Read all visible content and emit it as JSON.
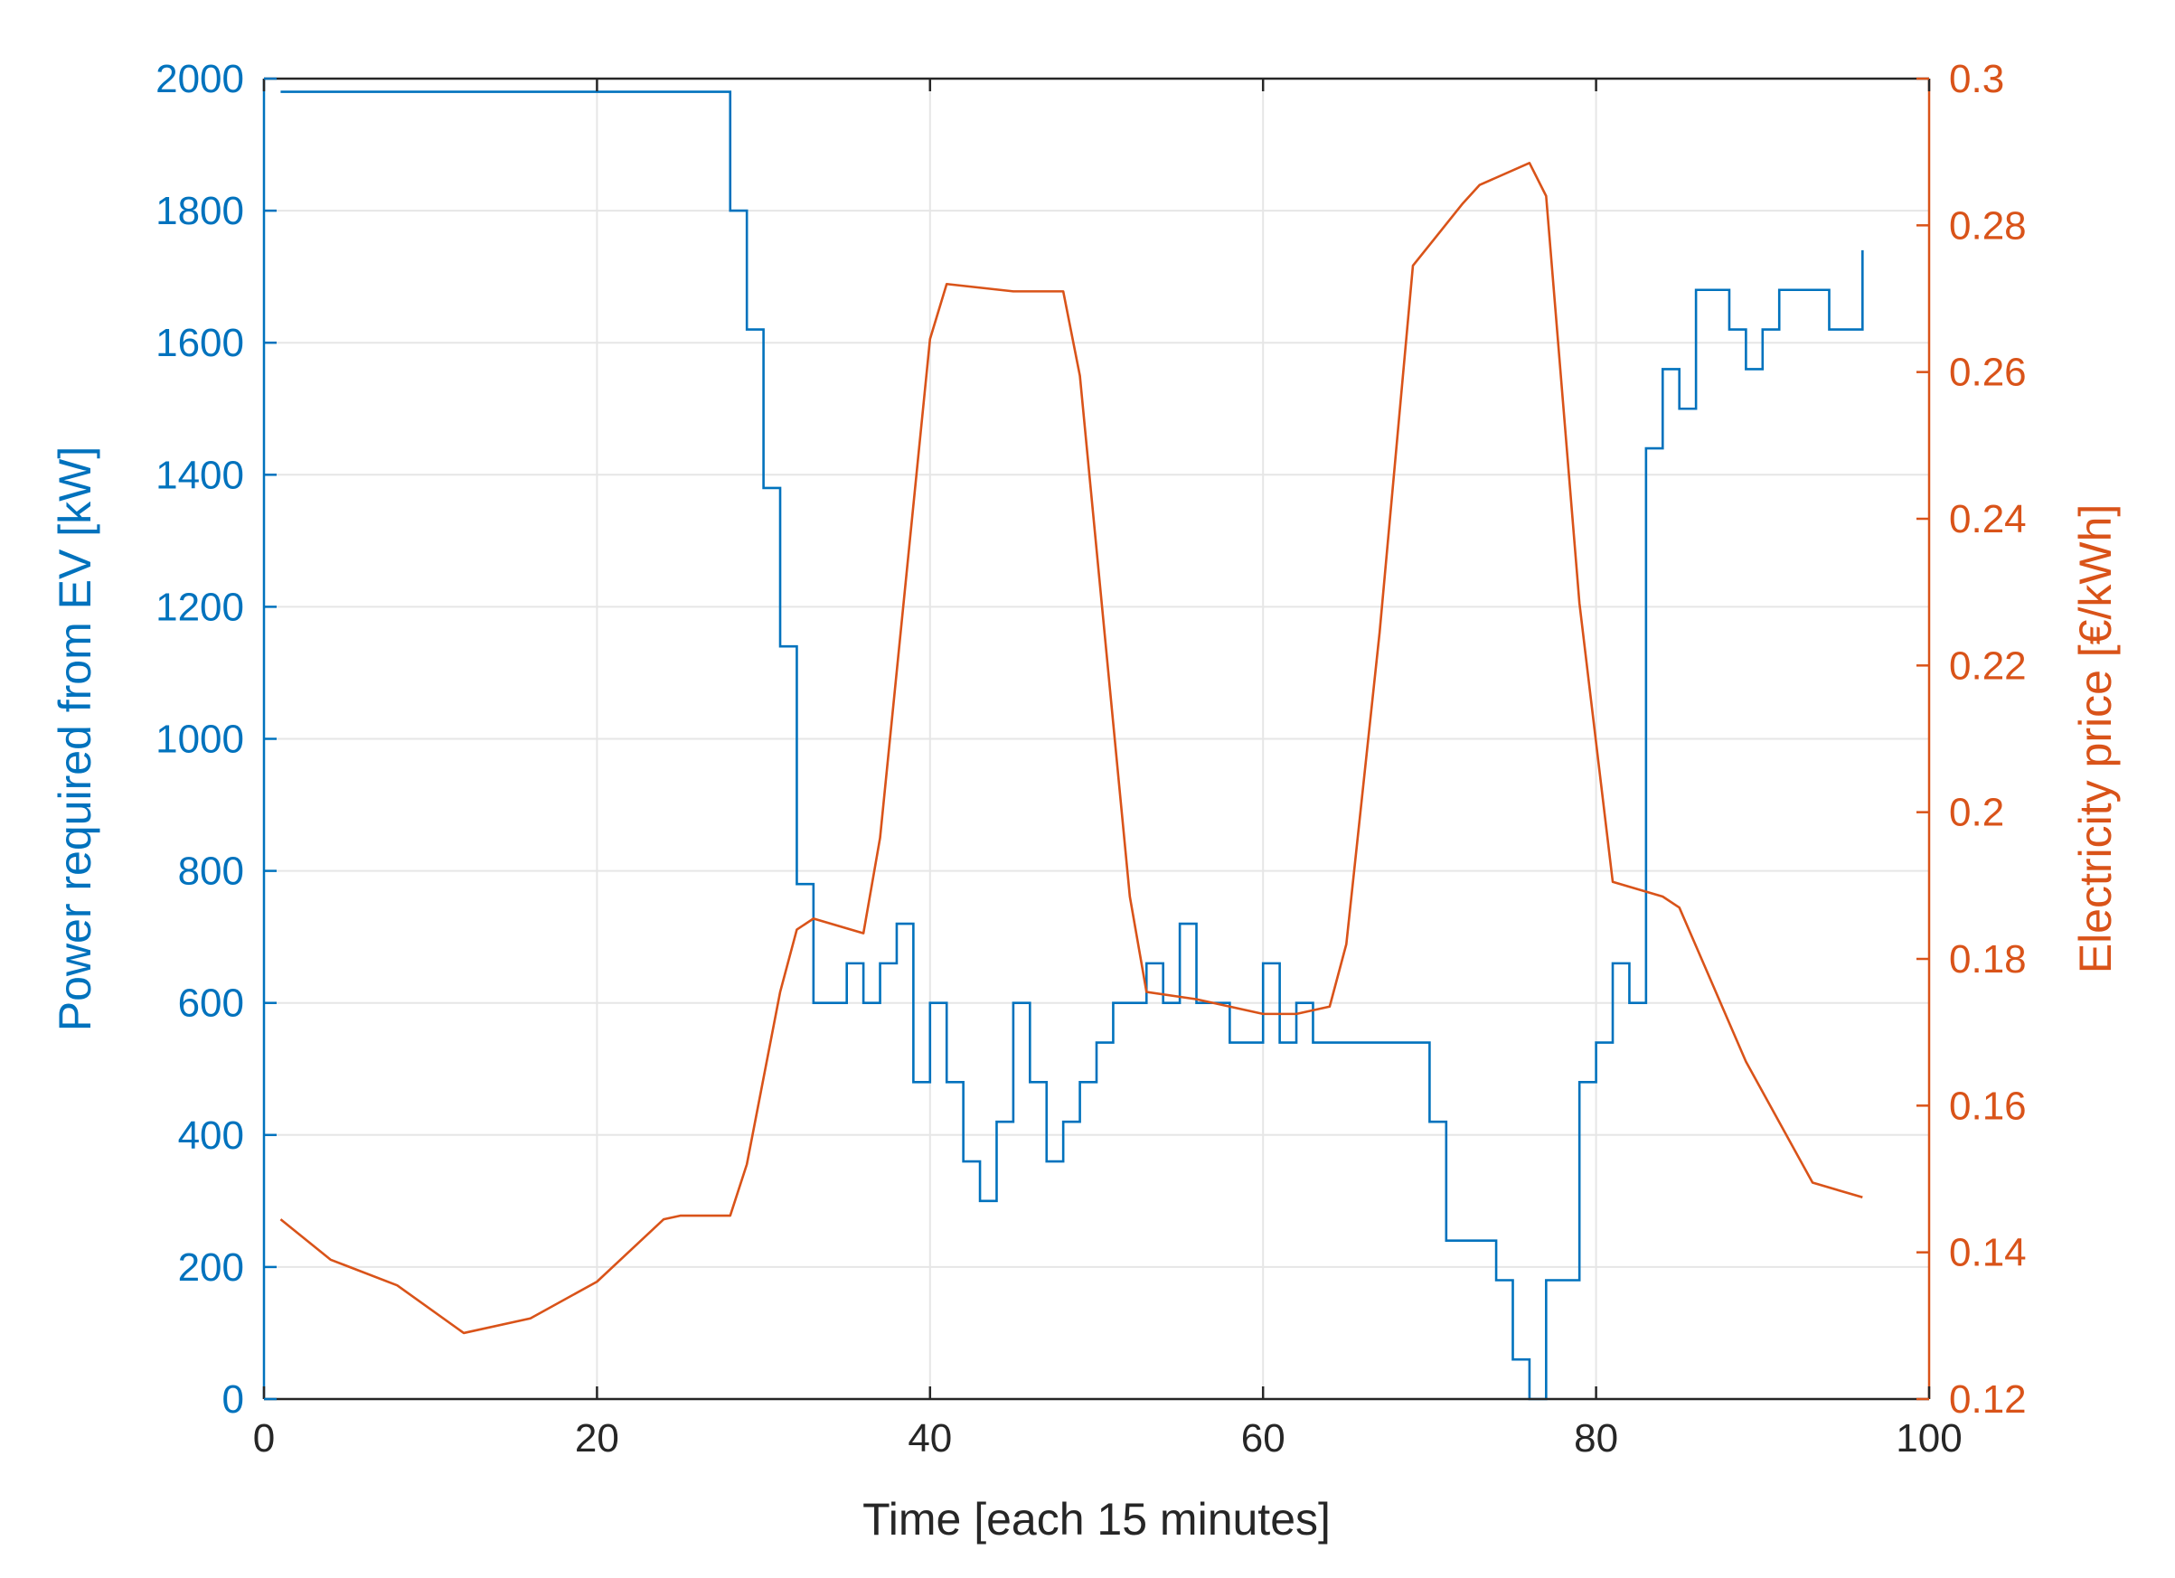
{
  "chart_data": {
    "type": "line",
    "xlabel": "Time [each 15 minutes]",
    "ylabel_left": "Power required from EV [kW]",
    "ylabel_right": "Electricity price [€/kWh]",
    "xlim": [
      0,
      100
    ],
    "ylim_left": [
      0,
      2000
    ],
    "ylim_right": [
      0.12,
      0.3
    ],
    "x_ticks": [
      0,
      20,
      40,
      60,
      80,
      100
    ],
    "x_tick_labels": [
      "0",
      "20",
      "40",
      "60",
      "80",
      "100"
    ],
    "y_left_ticks": [
      0,
      200,
      400,
      600,
      800,
      1000,
      1200,
      1400,
      1600,
      1800,
      2000
    ],
    "y_left_tick_labels": [
      "0",
      "200",
      "400",
      "600",
      "800",
      "1000",
      "1200",
      "1400",
      "1600",
      "1800",
      "2000"
    ],
    "y_right_ticks": [
      0.12,
      0.14,
      0.16,
      0.18,
      0.2,
      0.22,
      0.24,
      0.26,
      0.28,
      0.3
    ],
    "y_right_tick_labels": [
      "0.12",
      "0.14",
      "0.16",
      "0.18",
      "0.2",
      "0.22",
      "0.24",
      "0.26",
      "0.28",
      "0.3"
    ],
    "grid": true,
    "colors": {
      "power": "#0072BD",
      "price": "#D95319",
      "grid": "#E6E6E6",
      "axis": "#262626"
    },
    "series": [
      {
        "axis": "left",
        "style": "stairs",
        "x": [
          1,
          2,
          3,
          4,
          5,
          6,
          7,
          8,
          9,
          10,
          11,
          12,
          13,
          14,
          15,
          16,
          17,
          18,
          19,
          20,
          21,
          22,
          23,
          24,
          25,
          26,
          27,
          28,
          29,
          30,
          31,
          32,
          33,
          34,
          35,
          36,
          37,
          38,
          39,
          40,
          41,
          42,
          43,
          44,
          45,
          46,
          47,
          48,
          49,
          50,
          51,
          52,
          53,
          54,
          55,
          56,
          57,
          58,
          59,
          60,
          61,
          62,
          63,
          64,
          65,
          66,
          67,
          68,
          69,
          70,
          71,
          72,
          73,
          74,
          75,
          76,
          77,
          78,
          79,
          80,
          81,
          82,
          83,
          84,
          85,
          86,
          87,
          88,
          89,
          90,
          91,
          92,
          93,
          94,
          95,
          96
        ],
        "values": [
          1980,
          1980,
          1980,
          1980,
          1980,
          1980,
          1980,
          1980,
          1980,
          1980,
          1980,
          1980,
          1980,
          1980,
          1980,
          1980,
          1980,
          1980,
          1980,
          1980,
          1980,
          1980,
          1980,
          1980,
          1980,
          1980,
          1980,
          1800,
          1620,
          1380,
          1140,
          780,
          600,
          600,
          660,
          600,
          660,
          720,
          480,
          600,
          480,
          360,
          300,
          420,
          600,
          480,
          360,
          420,
          480,
          540,
          600,
          600,
          660,
          600,
          720,
          600,
          600,
          540,
          540,
          660,
          540,
          600,
          540,
          540,
          540,
          540,
          540,
          540,
          540,
          420,
          240,
          240,
          240,
          180,
          60,
          0,
          180,
          180,
          480,
          540,
          660,
          600,
          1440,
          1560,
          1500,
          1680,
          1680,
          1620,
          1560,
          1620,
          1680,
          1680,
          1680,
          1620,
          1620,
          1740
        ]
      },
      {
        "axis": "right",
        "style": "line",
        "x": [
          1,
          4,
          8,
          12,
          16,
          20,
          24,
          25,
          28,
          29,
          31,
          32,
          33,
          36,
          37,
          40,
          41,
          45,
          48,
          49,
          52,
          53,
          56,
          58,
          60,
          62,
          64,
          65,
          67,
          69,
          72,
          73,
          76,
          77,
          79,
          81,
          84,
          85,
          87,
          89,
          93,
          96
        ],
        "values": [
          0.1445,
          0.139,
          0.1355,
          0.129,
          0.131,
          0.136,
          0.1445,
          0.145,
          0.145,
          0.152,
          0.1755,
          0.184,
          0.1855,
          0.1835,
          0.1965,
          0.2645,
          0.272,
          0.271,
          0.271,
          0.2595,
          0.1885,
          0.1755,
          0.1745,
          0.1735,
          0.1725,
          0.1725,
          0.1735,
          0.182,
          0.2245,
          0.2745,
          0.283,
          0.2855,
          0.2885,
          0.284,
          0.2285,
          0.1905,
          0.1885,
          0.187,
          0.1765,
          0.166,
          0.1495,
          0.1475
        ]
      }
    ]
  }
}
